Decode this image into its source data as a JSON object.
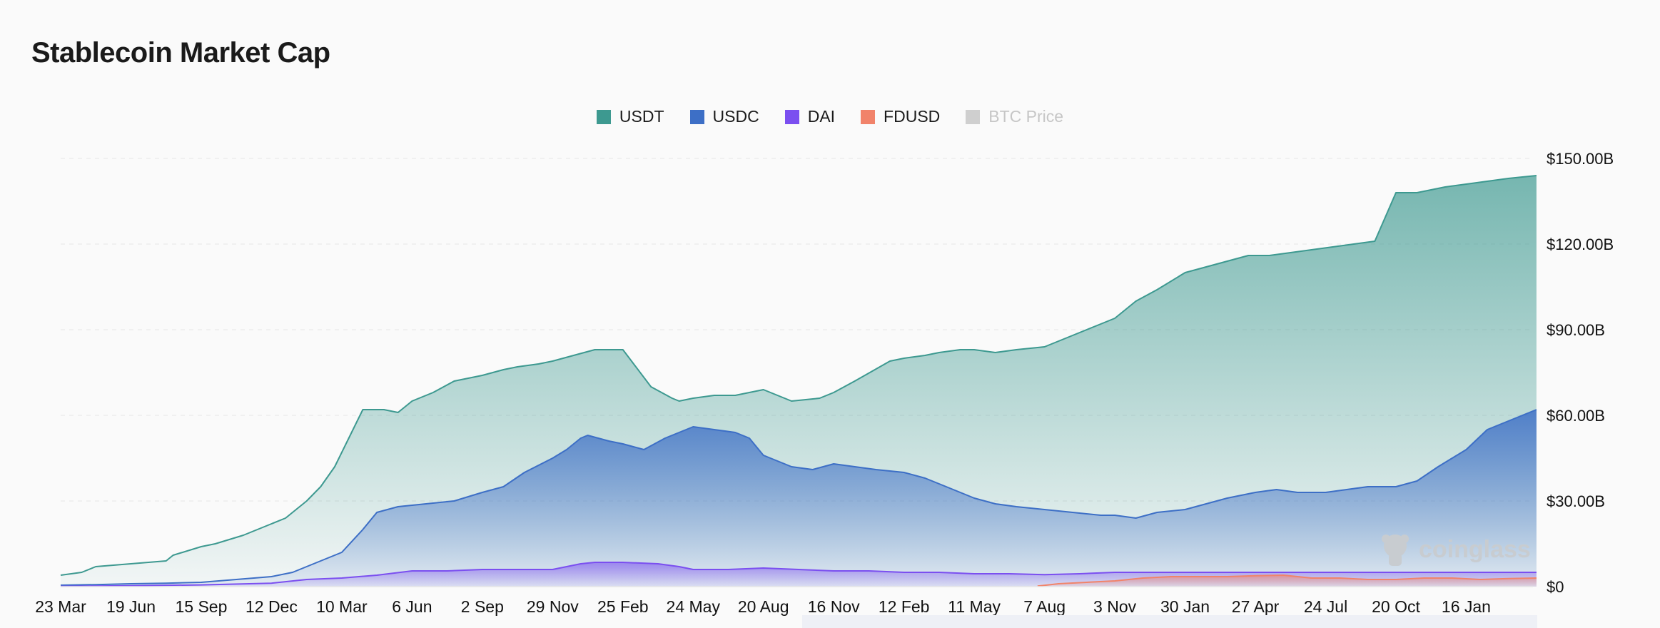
{
  "chart_data": {
    "type": "area",
    "title": "Stablecoin Market Cap",
    "x_ticks": [
      "23 Mar",
      "19 Jun",
      "15 Sep",
      "12 Dec",
      "10 Mar",
      "6 Jun",
      "2 Sep",
      "29 Nov",
      "25 Feb",
      "24 May",
      "20 Aug",
      "16 Nov",
      "12 Feb",
      "11 May",
      "7 Aug",
      "3 Nov",
      "30 Jan",
      "27 Apr",
      "24 Jul",
      "20 Oct",
      "16 Jan"
    ],
    "y_ticks": [
      "$150.00B",
      "$120.00B",
      "$90.00B",
      "$60.00B",
      "$30.00B",
      "$0"
    ],
    "ylim": [
      0,
      150
    ],
    "y_unit": "B USD",
    "grid": true,
    "legend_position": "top-center",
    "series": [
      {
        "name": "USDT",
        "color": "#3d9990",
        "x": [
          0,
          0.3,
          0.5,
          1.0,
          1.5,
          1.6,
          2.0,
          2.2,
          2.6,
          3.0,
          3.2,
          3.5,
          3.7,
          3.9,
          4.1,
          4.3,
          4.6,
          4.8,
          5.0,
          5.3,
          5.6,
          6.0,
          6.3,
          6.5,
          6.8,
          7.0,
          7.3,
          7.6,
          8.0,
          8.4,
          8.7,
          8.8,
          9.0,
          9.3,
          9.6,
          10.0,
          10.4,
          10.8,
          11.0,
          11.3,
          11.8,
          12.0,
          12.3,
          12.5,
          12.8,
          13.0,
          13.3,
          13.6,
          14.0,
          14.4,
          14.8,
          15.0,
          15.3,
          15.6,
          16.0,
          16.3,
          16.6,
          16.9,
          17.2,
          17.5,
          17.8,
          18.1,
          18.4,
          18.7,
          19.0,
          19.3,
          19.5,
          19.7,
          20.0,
          20.3,
          20.6,
          21.0
        ],
        "values": [
          4,
          5,
          7,
          8,
          9,
          11,
          14,
          15,
          18,
          22,
          24,
          30,
          35,
          42,
          52,
          62,
          62,
          61,
          65,
          68,
          72,
          74,
          76,
          77,
          78,
          79,
          81,
          83,
          83,
          70,
          66,
          65,
          66,
          67,
          67,
          69,
          65,
          66,
          68,
          72,
          79,
          80,
          81,
          82,
          83,
          83,
          82,
          83,
          84,
          88,
          92,
          94,
          100,
          104,
          110,
          112,
          114,
          116,
          116,
          117,
          118,
          119,
          120,
          121,
          138,
          138,
          139,
          140,
          141,
          142,
          143,
          144
        ]
      },
      {
        "name": "USDC",
        "color": "#3d6fc6",
        "x": [
          0,
          0.5,
          1.0,
          1.5,
          2.0,
          2.5,
          3.0,
          3.3,
          3.6,
          4.0,
          4.3,
          4.5,
          4.8,
          5.2,
          5.6,
          6.0,
          6.3,
          6.6,
          7.0,
          7.2,
          7.4,
          7.5,
          7.8,
          8.0,
          8.3,
          8.6,
          9.0,
          9.3,
          9.6,
          9.8,
          10.0,
          10.2,
          10.4,
          10.7,
          11.0,
          11.3,
          11.6,
          12.0,
          12.3,
          12.6,
          13.0,
          13.3,
          13.6,
          14.0,
          14.4,
          14.8,
          15.0,
          15.3,
          15.6,
          16.0,
          16.3,
          16.6,
          17.0,
          17.3,
          17.6,
          18.0,
          18.3,
          18.6,
          19.0,
          19.3,
          19.6,
          20.0,
          20.3,
          20.6,
          21.0
        ],
        "values": [
          0.5,
          0.7,
          1,
          1.2,
          1.5,
          2.5,
          3.5,
          5,
          8,
          12,
          20,
          26,
          28,
          29,
          30,
          33,
          35,
          40,
          45,
          48,
          52,
          53,
          51,
          50,
          48,
          52,
          56,
          55,
          54,
          52,
          46,
          44,
          42,
          41,
          43,
          42,
          41,
          40,
          38,
          35,
          31,
          29,
          28,
          27,
          26,
          25,
          25,
          24,
          26,
          27,
          29,
          31,
          33,
          34,
          33,
          33,
          34,
          35,
          35,
          37,
          42,
          48,
          55,
          58,
          62
        ]
      },
      {
        "name": "DAI",
        "color": "#7b4ff0",
        "x": [
          0,
          1.0,
          2.0,
          3.0,
          3.5,
          4.0,
          4.5,
          5.0,
          5.5,
          6.0,
          6.5,
          7.0,
          7.2,
          7.4,
          7.6,
          8.0,
          8.5,
          8.8,
          9.0,
          9.5,
          10.0,
          10.5,
          11.0,
          11.5,
          12.0,
          12.5,
          13.0,
          13.5,
          14.0,
          14.5,
          15.0,
          16.0,
          17.0,
          18.0,
          19.0,
          20.0,
          21.0
        ],
        "values": [
          0.1,
          0.3,
          0.6,
          1.2,
          2.5,
          3,
          4,
          5.5,
          5.5,
          6,
          6,
          6,
          7,
          8,
          8.5,
          8.5,
          8,
          7,
          6,
          6,
          6.5,
          6,
          5.5,
          5.5,
          5,
          5,
          4.5,
          4.5,
          4.2,
          4.5,
          5,
          5,
          5,
          5,
          5,
          5,
          5
        ]
      },
      {
        "name": "FDUSD",
        "color": "#f1836a",
        "x": [
          13.9,
          14.2,
          14.6,
          15.0,
          15.4,
          15.8,
          16.2,
          16.6,
          17.0,
          17.4,
          17.8,
          18.2,
          18.6,
          19.0,
          19.4,
          19.8,
          20.2,
          20.6,
          21.0
        ],
        "values": [
          0.2,
          1,
          1.5,
          2,
          3,
          3.5,
          3.5,
          3.5,
          3.8,
          4,
          3,
          3,
          2.5,
          2.5,
          3,
          3,
          2.5,
          2.8,
          3
        ]
      },
      {
        "name": "BTC Price",
        "color": "#cfcfcf",
        "hidden": true
      }
    ]
  },
  "watermark": "coinglass"
}
